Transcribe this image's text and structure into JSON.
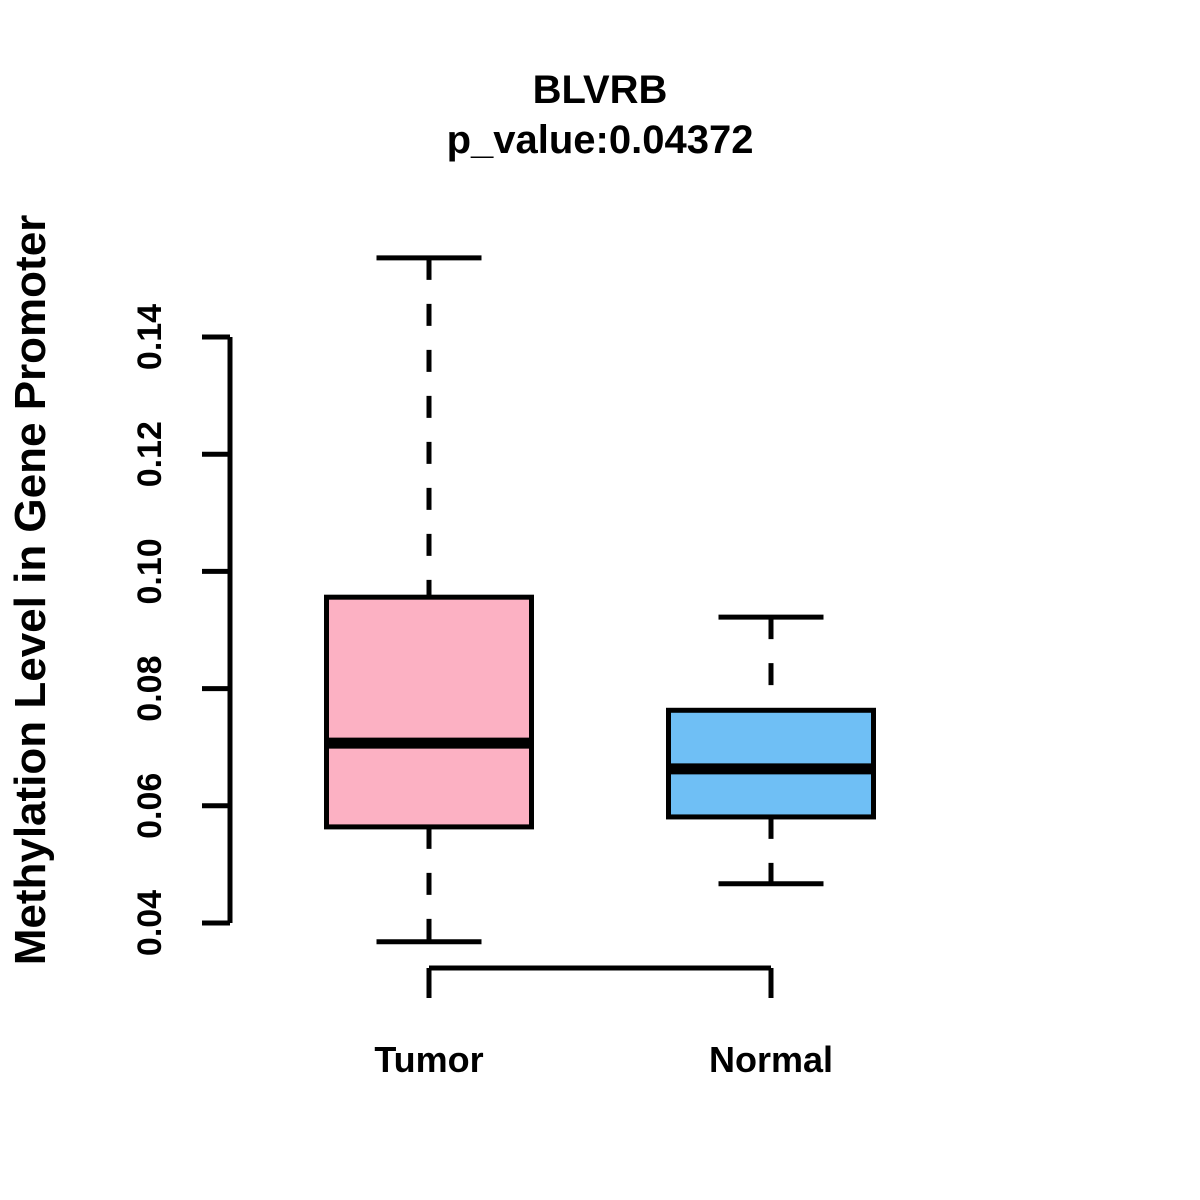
{
  "title": {
    "line1": "BLVRB",
    "line2": "p_value:0.04372"
  },
  "ylabel": "Methylation Level in Gene Promoter",
  "colors": {
    "tumor_fill": "#FCB1C3",
    "normal_fill": "#6FBFF5",
    "line": "#000000",
    "background": "#FFFFFF"
  },
  "chart_data": {
    "type": "boxplot",
    "title": "BLVRB",
    "subtitle": "p_value:0.04372",
    "xlabel": "",
    "ylabel": "Methylation Level in Gene Promoter",
    "categories": [
      "Tumor",
      "Normal"
    ],
    "ylim": [
      0.037,
      0.154
    ],
    "grid": false,
    "legend": "none",
    "yticks": [
      {
        "value": 0.04,
        "label": "0.04"
      },
      {
        "value": 0.06,
        "label": "0.06"
      },
      {
        "value": 0.08,
        "label": "0.08"
      },
      {
        "value": 0.1,
        "label": "0.10"
      },
      {
        "value": 0.12,
        "label": "0.12"
      },
      {
        "value": 0.14,
        "label": "0.14"
      }
    ],
    "series": [
      {
        "name": "Tumor",
        "color": "#FCB1C3",
        "whisker_low": 0.0368,
        "q1": 0.0564,
        "median": 0.0707,
        "q3": 0.0956,
        "whisker_high": 0.1535
      },
      {
        "name": "Normal",
        "color": "#6FBFF5",
        "whisker_low": 0.0467,
        "q1": 0.0581,
        "median": 0.0663,
        "q3": 0.0763,
        "whisker_high": 0.0922
      }
    ],
    "annotations": [
      {
        "type": "comparison-bracket",
        "from": "Tumor",
        "to": "Normal"
      }
    ]
  }
}
